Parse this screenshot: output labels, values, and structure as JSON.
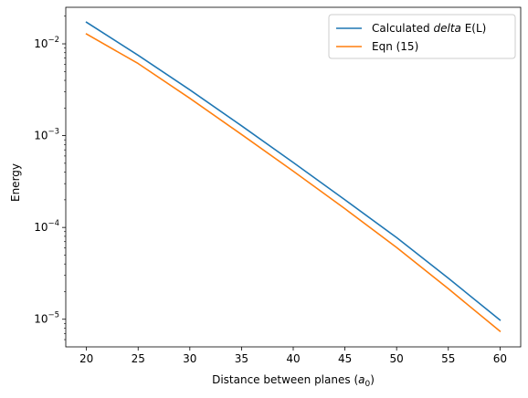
{
  "chart_data": {
    "type": "line",
    "xlabel": "Distance between planes",
    "xlabel_unit_base": "a",
    "xlabel_unit_sub": "0",
    "ylabel": "Energy",
    "y_scale": "log",
    "xlim": [
      18,
      62
    ],
    "ylim": [
      5e-06,
      0.025
    ],
    "x_ticks": [
      20,
      25,
      30,
      35,
      40,
      45,
      50,
      55,
      60
    ],
    "y_ticks": [
      {
        "value": 1e-05,
        "base": "10",
        "exp": "−5"
      },
      {
        "value": 0.0001,
        "base": "10",
        "exp": "−4"
      },
      {
        "value": 0.001,
        "base": "10",
        "exp": "−3"
      },
      {
        "value": 0.01,
        "base": "10",
        "exp": "−2"
      }
    ],
    "legend_position": "top-right",
    "grid": false,
    "series": [
      {
        "name_prefix": "Calculated ",
        "name_italic": "delta",
        "name_suffix": " E(L)",
        "color": "#1f77b4",
        "x": [
          20,
          25,
          30,
          35,
          40,
          45,
          50,
          55,
          60
        ],
        "y": [
          0.0172,
          0.0075,
          0.00315,
          0.00128,
          0.00051,
          0.0002,
          7.75e-05,
          2.8e-05,
          9.8e-06
        ]
      },
      {
        "name_prefix": "Eqn (15)",
        "name_italic": "",
        "name_suffix": "",
        "color": "#ff7f0e",
        "x": [
          20,
          25,
          30,
          35,
          40,
          45,
          50,
          55,
          60
        ],
        "y": [
          0.0128,
          0.0061,
          0.00255,
          0.00103,
          0.00041,
          0.00016,
          6.05e-05,
          2.15e-05,
          7.4e-06
        ]
      }
    ]
  }
}
